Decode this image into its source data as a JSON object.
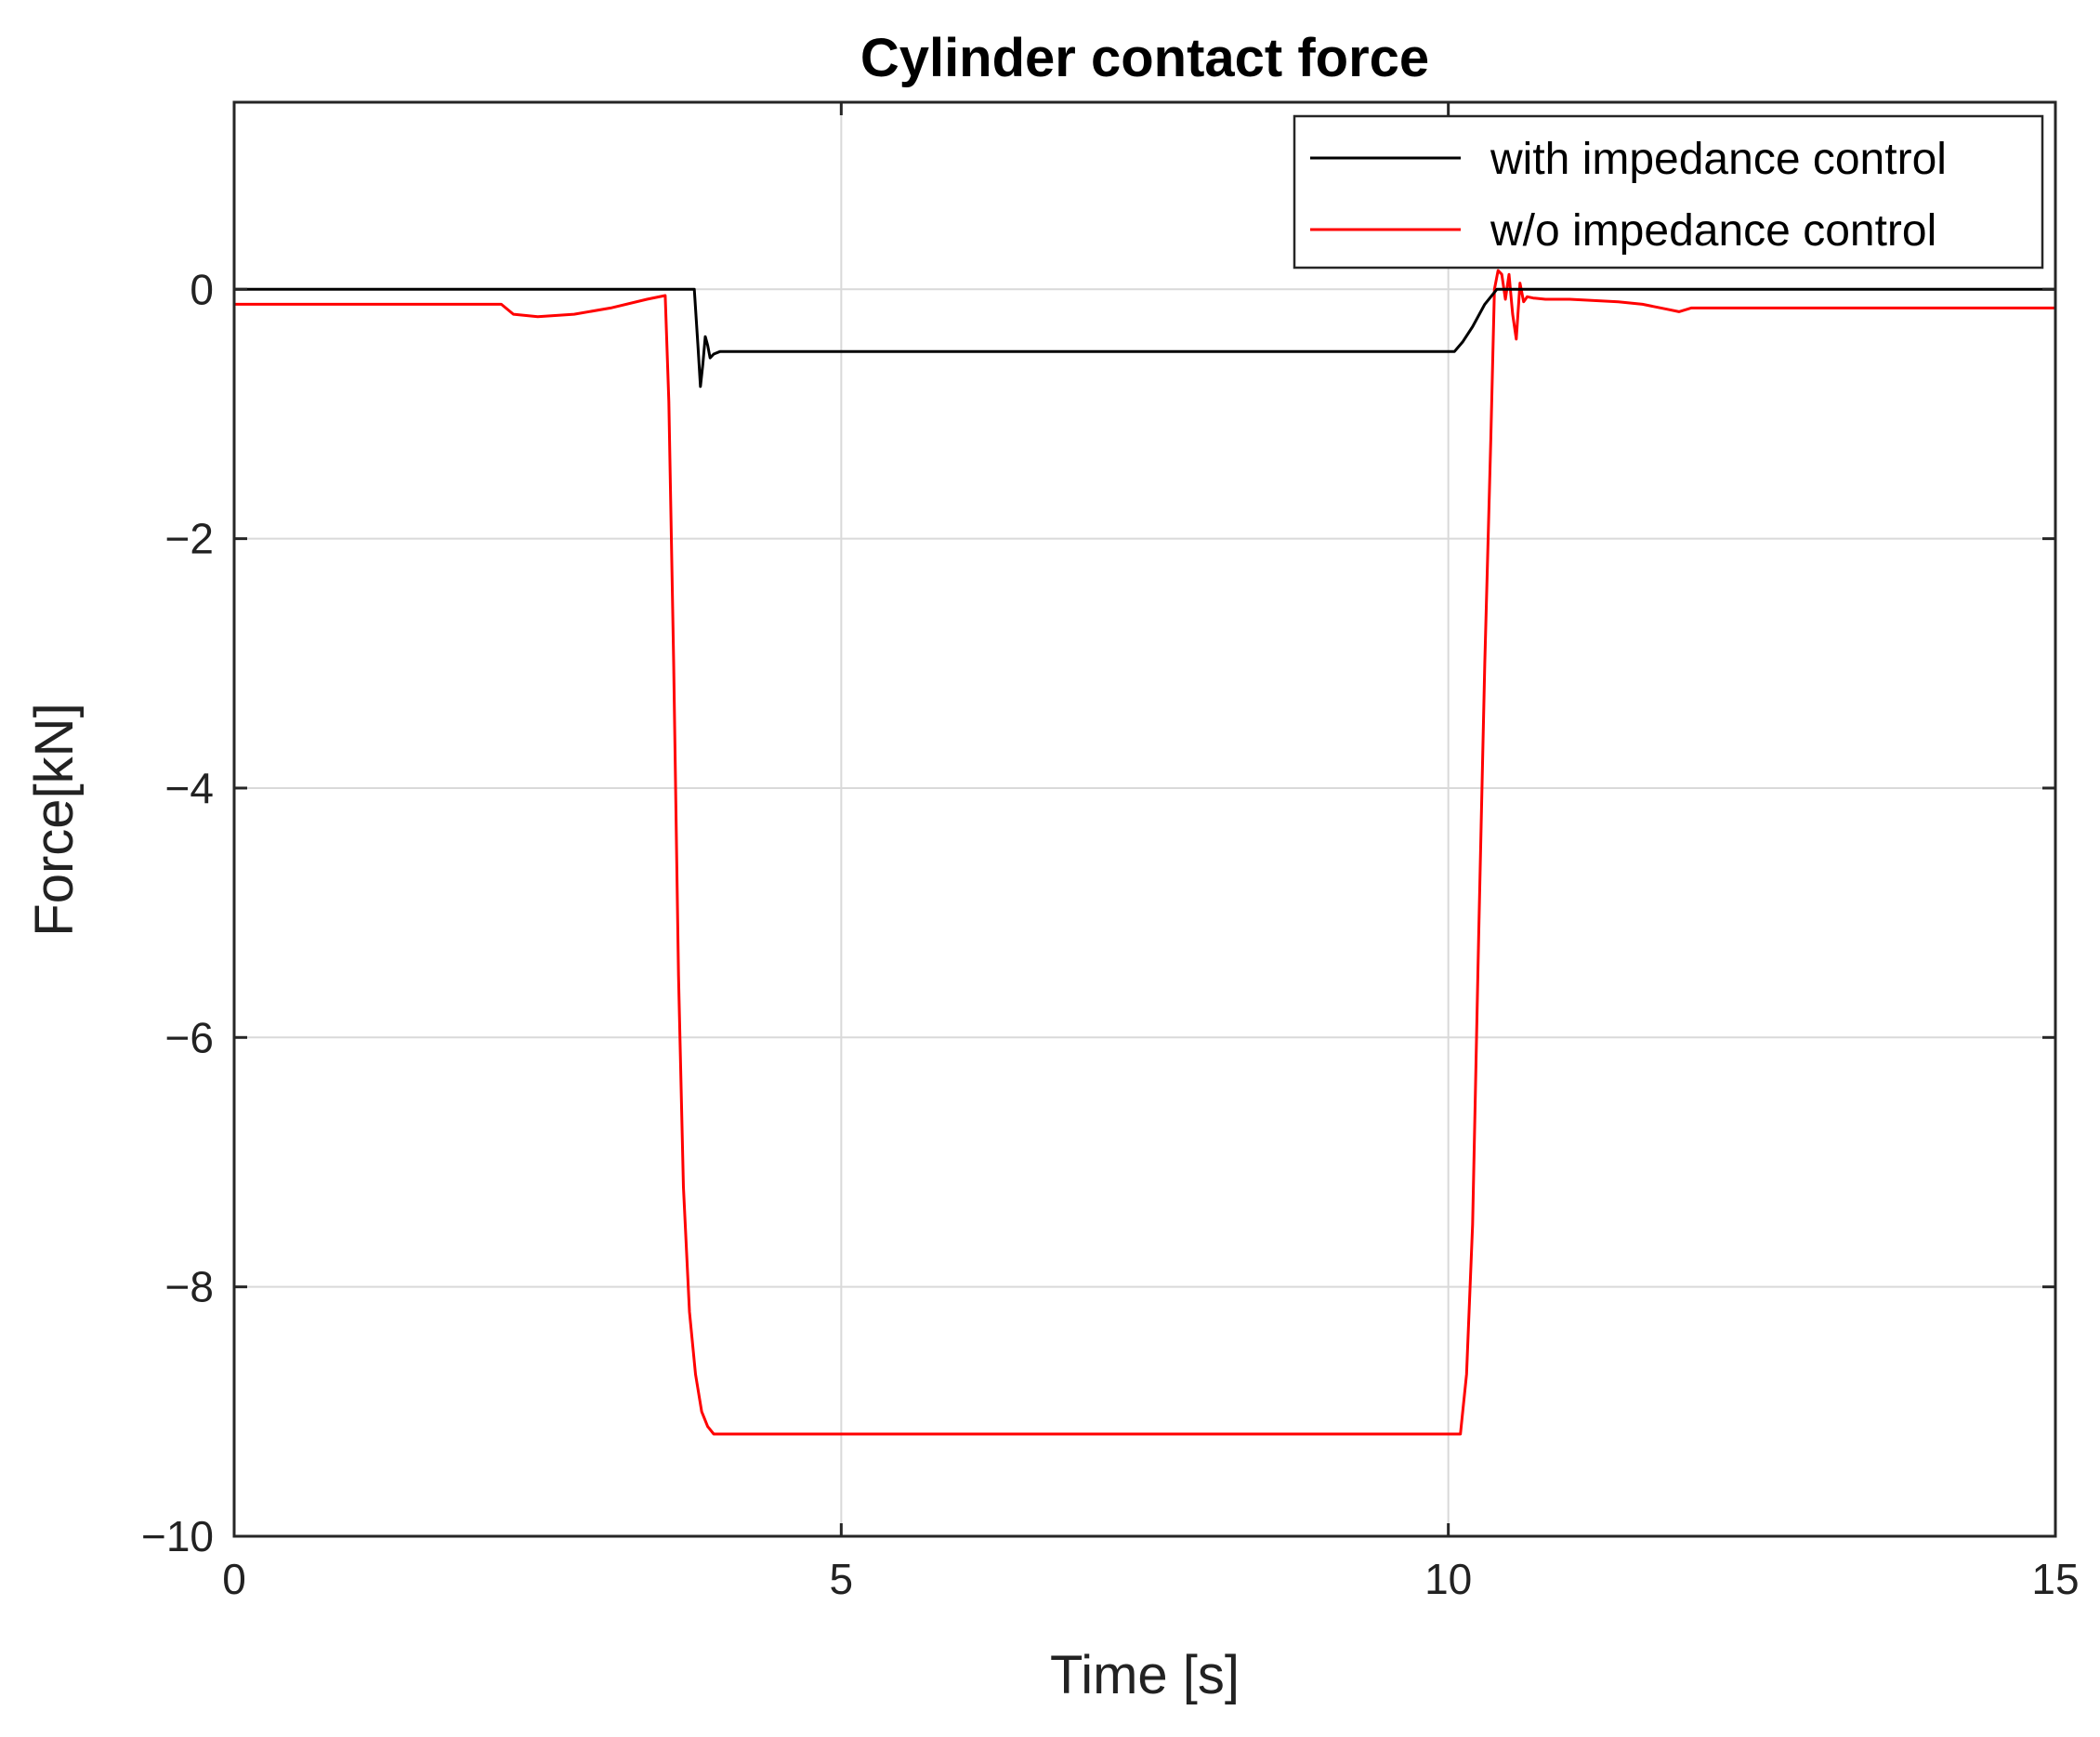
{
  "chart_data": {
    "type": "line",
    "title": "Cylinder contact force",
    "xlabel": "Time [s]",
    "ylabel": "Force[kN]",
    "xlim": [
      0,
      15
    ],
    "ylim": [
      -10,
      1.5
    ],
    "xticks": [
      0,
      5,
      10,
      15
    ],
    "xtick_labels": [
      "0",
      "5",
      "10",
      "15"
    ],
    "yticks": [
      0,
      -2,
      -4,
      -6,
      -8,
      -10
    ],
    "ytick_labels": [
      "0",
      "−2",
      "−4",
      "−6",
      "−8",
      "−10"
    ],
    "grid": true,
    "legend_position": "top-right",
    "series": [
      {
        "name": "with impedance control",
        "color": "#000000",
        "x": [
          0,
          3.79,
          3.8,
          3.82,
          3.84,
          3.86,
          3.88,
          3.9,
          3.92,
          3.95,
          4.0,
          4.1,
          6.0,
          8.0,
          10.05,
          10.12,
          10.2,
          10.3,
          10.4,
          12.0,
          15.0
        ],
        "y": [
          0,
          0,
          -0.15,
          -0.45,
          -0.78,
          -0.6,
          -0.38,
          -0.45,
          -0.55,
          -0.52,
          -0.5,
          -0.5,
          -0.5,
          -0.5,
          -0.5,
          -0.42,
          -0.3,
          -0.12,
          0,
          0,
          0
        ]
      },
      {
        "name": "w/o impedance control",
        "color": "#ff0000",
        "x": [
          0,
          2.2,
          2.3,
          2.5,
          2.8,
          3.1,
          3.4,
          3.55,
          3.58,
          3.62,
          3.66,
          3.7,
          3.75,
          3.8,
          3.85,
          3.9,
          3.95,
          4.0,
          4.05,
          4.2,
          6.0,
          8.0,
          10.1,
          10.15,
          10.2,
          10.25,
          10.3,
          10.35,
          10.38,
          10.41,
          10.44,
          10.47,
          10.5,
          10.53,
          10.56,
          10.59,
          10.62,
          10.65,
          10.7,
          10.8,
          11.0,
          11.4,
          11.6,
          11.8,
          11.9,
          12.0,
          15.0
        ],
        "y": [
          -0.12,
          -0.12,
          -0.2,
          -0.22,
          -0.2,
          -0.15,
          -0.08,
          -0.05,
          -0.9,
          -3.0,
          -5.5,
          -7.2,
          -8.2,
          -8.7,
          -9.0,
          -9.12,
          -9.18,
          -9.18,
          -9.18,
          -9.18,
          -9.18,
          -9.18,
          -9.18,
          -8.7,
          -7.5,
          -5.2,
          -3.0,
          -1.2,
          0.0,
          0.15,
          0.12,
          -0.08,
          0.12,
          -0.2,
          -0.4,
          0.05,
          -0.1,
          -0.06,
          -0.07,
          -0.08,
          -0.08,
          -0.1,
          -0.12,
          -0.16,
          -0.18,
          -0.15,
          -0.15
        ]
      }
    ]
  }
}
